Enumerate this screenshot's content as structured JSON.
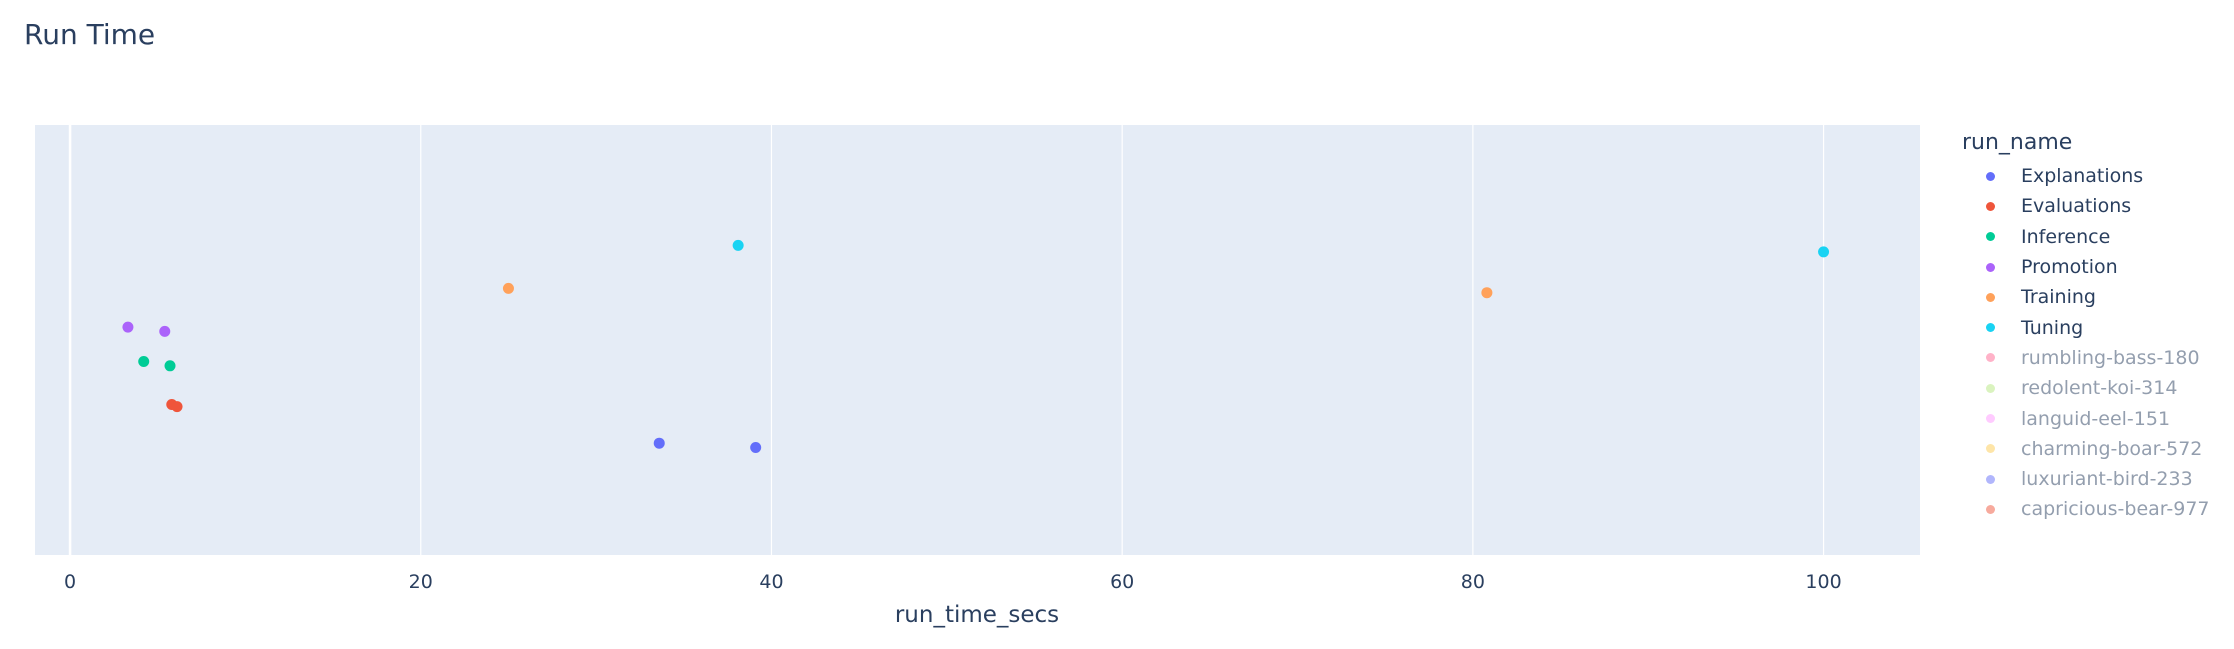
{
  "chart_data": {
    "type": "scatter",
    "title": "Run Time",
    "xlabel": "run_time_secs",
    "ylabel": "",
    "xlim": [
      -2,
      105.5
    ],
    "x_ticks": [
      0,
      20,
      40,
      60,
      80,
      100
    ],
    "grid": true,
    "legend_title": "run_name",
    "legend_position": "right",
    "series": [
      {
        "name": "Explanations",
        "color": "#636efa",
        "visible": true,
        "points": [
          {
            "x": 33.6,
            "y": -0.48
          },
          {
            "x": 39.1,
            "y": -0.5
          }
        ]
      },
      {
        "name": "Evaluations",
        "color": "#ef553b",
        "visible": true,
        "points": [
          {
            "x": 5.8,
            "y": -0.3
          },
          {
            "x": 6.1,
            "y": -0.31
          }
        ]
      },
      {
        "name": "Inference",
        "color": "#00cc96",
        "visible": true,
        "points": [
          {
            "x": 4.2,
            "y": -0.1
          },
          {
            "x": 5.7,
            "y": -0.12
          }
        ]
      },
      {
        "name": "Promotion",
        "color": "#ab63fa",
        "visible": true,
        "points": [
          {
            "x": 3.3,
            "y": 0.06
          },
          {
            "x": 5.4,
            "y": 0.04
          }
        ]
      },
      {
        "name": "Training",
        "color": "#ffa15a",
        "visible": true,
        "points": [
          {
            "x": 25.0,
            "y": 0.24
          },
          {
            "x": 80.8,
            "y": 0.22
          }
        ]
      },
      {
        "name": "Tuning",
        "color": "#19d3f3",
        "visible": true,
        "points": [
          {
            "x": 38.1,
            "y": 0.44
          },
          {
            "x": 100.0,
            "y": 0.41
          }
        ]
      },
      {
        "name": "rumbling-bass-180",
        "color": "#ff6692",
        "visible": false,
        "points": []
      },
      {
        "name": "redolent-koi-314",
        "color": "#b6e880",
        "visible": false,
        "points": []
      },
      {
        "name": "languid-eel-151",
        "color": "#ff97ff",
        "visible": false,
        "points": []
      },
      {
        "name": "charming-boar-572",
        "color": "#fecb52",
        "visible": false,
        "points": []
      },
      {
        "name": "luxuriant-bird-233",
        "color": "#636efa",
        "visible": false,
        "points": []
      },
      {
        "name": "capricious-bear-977",
        "color": "#ef553b",
        "visible": false,
        "points": []
      }
    ]
  }
}
